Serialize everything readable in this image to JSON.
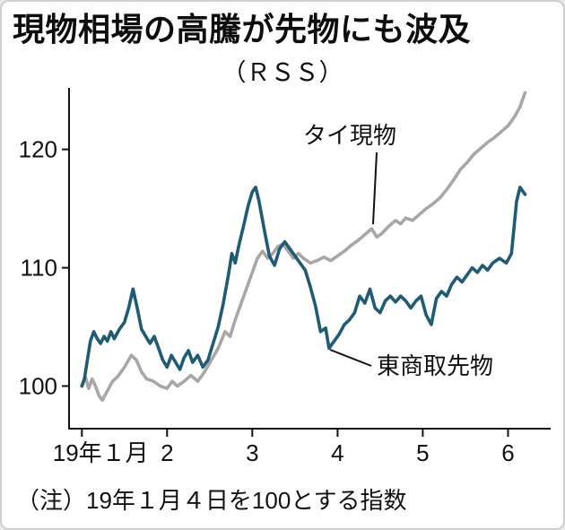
{
  "chart_data": {
    "type": "line",
    "title": "現物相場の高騰が先物にも波及",
    "subtitle": "（ＲＳＳ）",
    "note": "（注）19年１月４日を100とする指数",
    "x_axis": {
      "range": [
        0.85,
        6.5
      ],
      "ticks": [
        {
          "x": 1,
          "label": "19年１月",
          "label_x": 1.22
        },
        {
          "x": 2,
          "label": "2"
        },
        {
          "x": 3,
          "label": "3"
        },
        {
          "x": 4,
          "label": "4"
        },
        {
          "x": 5,
          "label": "5"
        },
        {
          "x": 6,
          "label": "6"
        }
      ]
    },
    "y_axis": {
      "range": [
        96.4,
        125.2
      ],
      "ticks": [
        100,
        110,
        120
      ]
    },
    "series": [
      {
        "name": "タイ現物",
        "color": "#a9a6a4",
        "points": [
          [
            1.0,
            100
          ],
          [
            1.04,
            100.8
          ],
          [
            1.08,
            99.8
          ],
          [
            1.12,
            100.6
          ],
          [
            1.16,
            100.0
          ],
          [
            1.2,
            99.2
          ],
          [
            1.24,
            98.8
          ],
          [
            1.3,
            99.6
          ],
          [
            1.36,
            100.4
          ],
          [
            1.42,
            100.8
          ],
          [
            1.5,
            101.6
          ],
          [
            1.58,
            102.6
          ],
          [
            1.64,
            102.2
          ],
          [
            1.7,
            101.2
          ],
          [
            1.76,
            100.6
          ],
          [
            1.84,
            100.4
          ],
          [
            1.92,
            100.0
          ],
          [
            2.0,
            99.8
          ],
          [
            2.06,
            100.4
          ],
          [
            2.12,
            100.0
          ],
          [
            2.2,
            100.4
          ],
          [
            2.28,
            100.9
          ],
          [
            2.36,
            100.4
          ],
          [
            2.44,
            101.2
          ],
          [
            2.52,
            102.2
          ],
          [
            2.6,
            103.2
          ],
          [
            2.68,
            104.6
          ],
          [
            2.74,
            104.2
          ],
          [
            2.8,
            105.6
          ],
          [
            2.88,
            107.2
          ],
          [
            2.96,
            108.8
          ],
          [
            3.0,
            109.6
          ],
          [
            3.06,
            110.8
          ],
          [
            3.12,
            111.4
          ],
          [
            3.18,
            110.8
          ],
          [
            3.24,
            111.2
          ],
          [
            3.3,
            111.8
          ],
          [
            3.36,
            112.0
          ],
          [
            3.42,
            111.4
          ],
          [
            3.48,
            110.8
          ],
          [
            3.54,
            111.2
          ],
          [
            3.6,
            110.8
          ],
          [
            3.68,
            110.4
          ],
          [
            3.76,
            110.6
          ],
          [
            3.84,
            110.9
          ],
          [
            3.92,
            110.6
          ],
          [
            4.0,
            111.0
          ],
          [
            4.08,
            111.4
          ],
          [
            4.16,
            111.9
          ],
          [
            4.24,
            112.3
          ],
          [
            4.32,
            112.8
          ],
          [
            4.4,
            113.3
          ],
          [
            4.46,
            112.6
          ],
          [
            4.52,
            112.9
          ],
          [
            4.6,
            113.5
          ],
          [
            4.68,
            114.0
          ],
          [
            4.74,
            113.7
          ],
          [
            4.8,
            114.2
          ],
          [
            4.88,
            114.0
          ],
          [
            4.96,
            114.5
          ],
          [
            5.04,
            115.0
          ],
          [
            5.12,
            115.4
          ],
          [
            5.2,
            115.9
          ],
          [
            5.28,
            116.6
          ],
          [
            5.36,
            117.4
          ],
          [
            5.44,
            118.3
          ],
          [
            5.52,
            118.9
          ],
          [
            5.6,
            119.6
          ],
          [
            5.68,
            120.1
          ],
          [
            5.76,
            120.6
          ],
          [
            5.84,
            121.0
          ],
          [
            5.92,
            121.5
          ],
          [
            6.0,
            122.0
          ],
          [
            6.08,
            122.8
          ],
          [
            6.14,
            123.6
          ],
          [
            6.2,
            124.8
          ]
        ]
      },
      {
        "name": "東商取先物",
        "color": "#1e5b77",
        "points": [
          [
            1.0,
            100
          ],
          [
            1.03,
            100.6
          ],
          [
            1.06,
            102.0
          ],
          [
            1.1,
            103.8
          ],
          [
            1.14,
            104.6
          ],
          [
            1.18,
            104.0
          ],
          [
            1.22,
            103.6
          ],
          [
            1.26,
            104.2
          ],
          [
            1.3,
            103.8
          ],
          [
            1.34,
            104.6
          ],
          [
            1.38,
            104.0
          ],
          [
            1.44,
            104.8
          ],
          [
            1.5,
            105.4
          ],
          [
            1.55,
            106.6
          ],
          [
            1.6,
            108.2
          ],
          [
            1.65,
            106.6
          ],
          [
            1.7,
            104.8
          ],
          [
            1.75,
            104.2
          ],
          [
            1.8,
            103.6
          ],
          [
            1.85,
            104.2
          ],
          [
            1.9,
            103.2
          ],
          [
            1.95,
            102.2
          ],
          [
            2.0,
            101.6
          ],
          [
            2.05,
            102.6
          ],
          [
            2.1,
            102.0
          ],
          [
            2.15,
            101.4
          ],
          [
            2.2,
            102.4
          ],
          [
            2.25,
            103.0
          ],
          [
            2.3,
            102.0
          ],
          [
            2.36,
            102.6
          ],
          [
            2.42,
            101.6
          ],
          [
            2.48,
            102.2
          ],
          [
            2.54,
            103.6
          ],
          [
            2.6,
            105.0
          ],
          [
            2.66,
            107.0
          ],
          [
            2.72,
            109.4
          ],
          [
            2.76,
            111.2
          ],
          [
            2.8,
            110.4
          ],
          [
            2.84,
            111.8
          ],
          [
            2.9,
            113.6
          ],
          [
            2.95,
            115.2
          ],
          [
            3.0,
            116.4
          ],
          [
            3.04,
            116.8
          ],
          [
            3.08,
            115.6
          ],
          [
            3.14,
            113.2
          ],
          [
            3.2,
            111.0
          ],
          [
            3.26,
            110.2
          ],
          [
            3.32,
            111.6
          ],
          [
            3.38,
            112.2
          ],
          [
            3.44,
            111.6
          ],
          [
            3.5,
            111.0
          ],
          [
            3.56,
            110.4
          ],
          [
            3.62,
            109.8
          ],
          [
            3.68,
            108.4
          ],
          [
            3.74,
            106.8
          ],
          [
            3.8,
            104.6
          ],
          [
            3.86,
            104.9
          ],
          [
            3.9,
            103.2
          ],
          [
            3.96,
            103.8
          ],
          [
            4.02,
            104.4
          ],
          [
            4.08,
            105.2
          ],
          [
            4.14,
            105.6
          ],
          [
            4.2,
            106.2
          ],
          [
            4.26,
            107.6
          ],
          [
            4.32,
            107.0
          ],
          [
            4.38,
            108.2
          ],
          [
            4.44,
            106.6
          ],
          [
            4.5,
            106.2
          ],
          [
            4.56,
            107.2
          ],
          [
            4.62,
            107.6
          ],
          [
            4.68,
            107.1
          ],
          [
            4.74,
            107.6
          ],
          [
            4.8,
            107.2
          ],
          [
            4.86,
            106.6
          ],
          [
            4.92,
            107.2
          ],
          [
            4.98,
            107.6
          ],
          [
            5.04,
            106.0
          ],
          [
            5.1,
            105.2
          ],
          [
            5.16,
            107.4
          ],
          [
            5.22,
            108.0
          ],
          [
            5.28,
            107.6
          ],
          [
            5.34,
            108.6
          ],
          [
            5.4,
            109.2
          ],
          [
            5.46,
            108.8
          ],
          [
            5.52,
            109.4
          ],
          [
            5.58,
            110.0
          ],
          [
            5.64,
            109.6
          ],
          [
            5.7,
            110.2
          ],
          [
            5.76,
            109.8
          ],
          [
            5.82,
            110.4
          ],
          [
            5.9,
            110.8
          ],
          [
            5.98,
            110.4
          ],
          [
            6.04,
            111.2
          ],
          [
            6.1,
            115.6
          ],
          [
            6.14,
            116.8
          ],
          [
            6.2,
            116.2
          ]
        ]
      }
    ],
    "annotations": [
      {
        "label": "タイ現物",
        "target_series": 0
      },
      {
        "label": "東商取先物",
        "target_series": 1
      }
    ],
    "grid": false,
    "legend_position": "inline-annotations"
  }
}
